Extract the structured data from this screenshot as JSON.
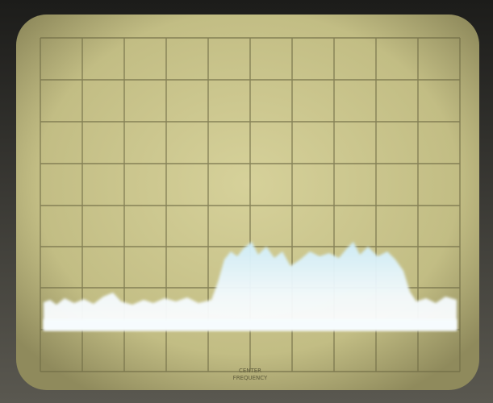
{
  "screen": {
    "label_lines": [
      "CENTER",
      "FREQUENCY"
    ]
  }
}
